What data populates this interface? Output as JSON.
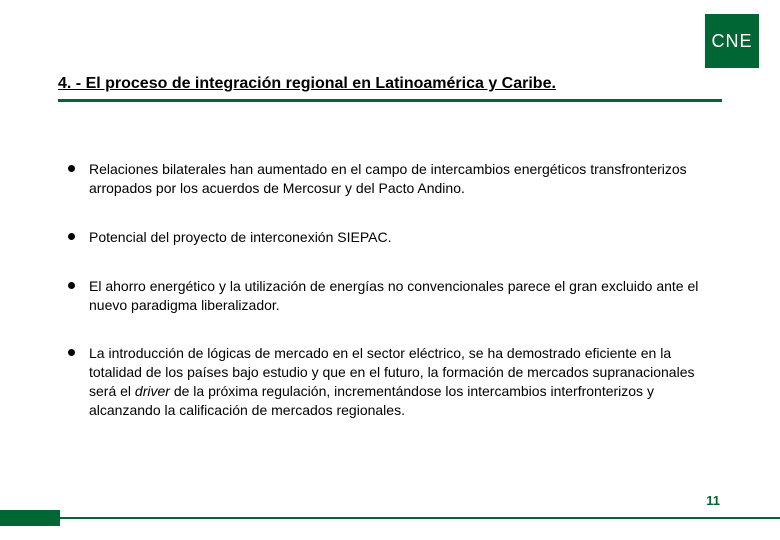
{
  "logo": {
    "text": "CNE",
    "bg_color": "#006633",
    "text_color": "#ffffff",
    "fontsize": 18
  },
  "title": {
    "text": "4. - El proceso de integración regional en Latinoamérica y Caribe.",
    "fontsize": 16,
    "color": "#000000",
    "underline_color": "#006633"
  },
  "bullets": {
    "dot_color": "#000000",
    "text_color": "#000000",
    "fontsize": 14,
    "items": [
      {
        "html": "Relaciones bilaterales han aumentado en el campo de intercambios energéticos transfronterizos arropados por los acuerdos de Mercosur y del Pacto Andino."
      },
      {
        "html": "Potencial del proyecto de interconexión SIEPAC."
      },
      {
        "html": "El ahorro energético y la utilización de energías no convencionales parece el gran excluido ante el nuevo paradigma liberalizador."
      },
      {
        "html": "La introducción de lógicas de mercado en el sector eléctrico, se ha demostrado eficiente en la totalidad de los países bajo estudio y que en el futuro, la formación de mercados supranacionales será el <em>driver</em> de la próxima regulación, incrementándose los intercambios interfronterizos y alcanzando la calificación de mercados regionales."
      }
    ]
  },
  "footer": {
    "accent_color": "#006633",
    "page_number": "11",
    "page_number_color": "#006633",
    "page_number_fontsize": 13
  }
}
